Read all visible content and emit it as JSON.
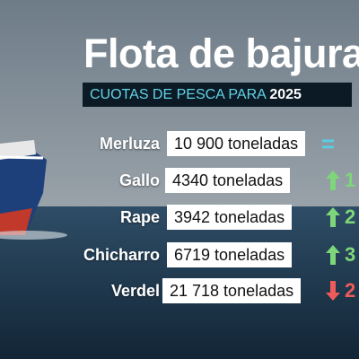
{
  "header": {
    "title": "Flota de bajura",
    "subtitle": {
      "text": "CUOTAS DE PESCA PARA",
      "year": "2025"
    }
  },
  "table": {
    "rows": [
      [
        "Merluza",
        "10 900 toneladas",
        "="
      ],
      [
        "Gallo",
        "4340 toneladas",
        "1"
      ],
      [
        "Rape",
        "3942 toneladas",
        "2"
      ],
      [
        "Chicharro",
        "6719 toneladas",
        "3"
      ],
      [
        "Verdel",
        "21 718 toneladas",
        "2"
      ]
    ]
  }
}
